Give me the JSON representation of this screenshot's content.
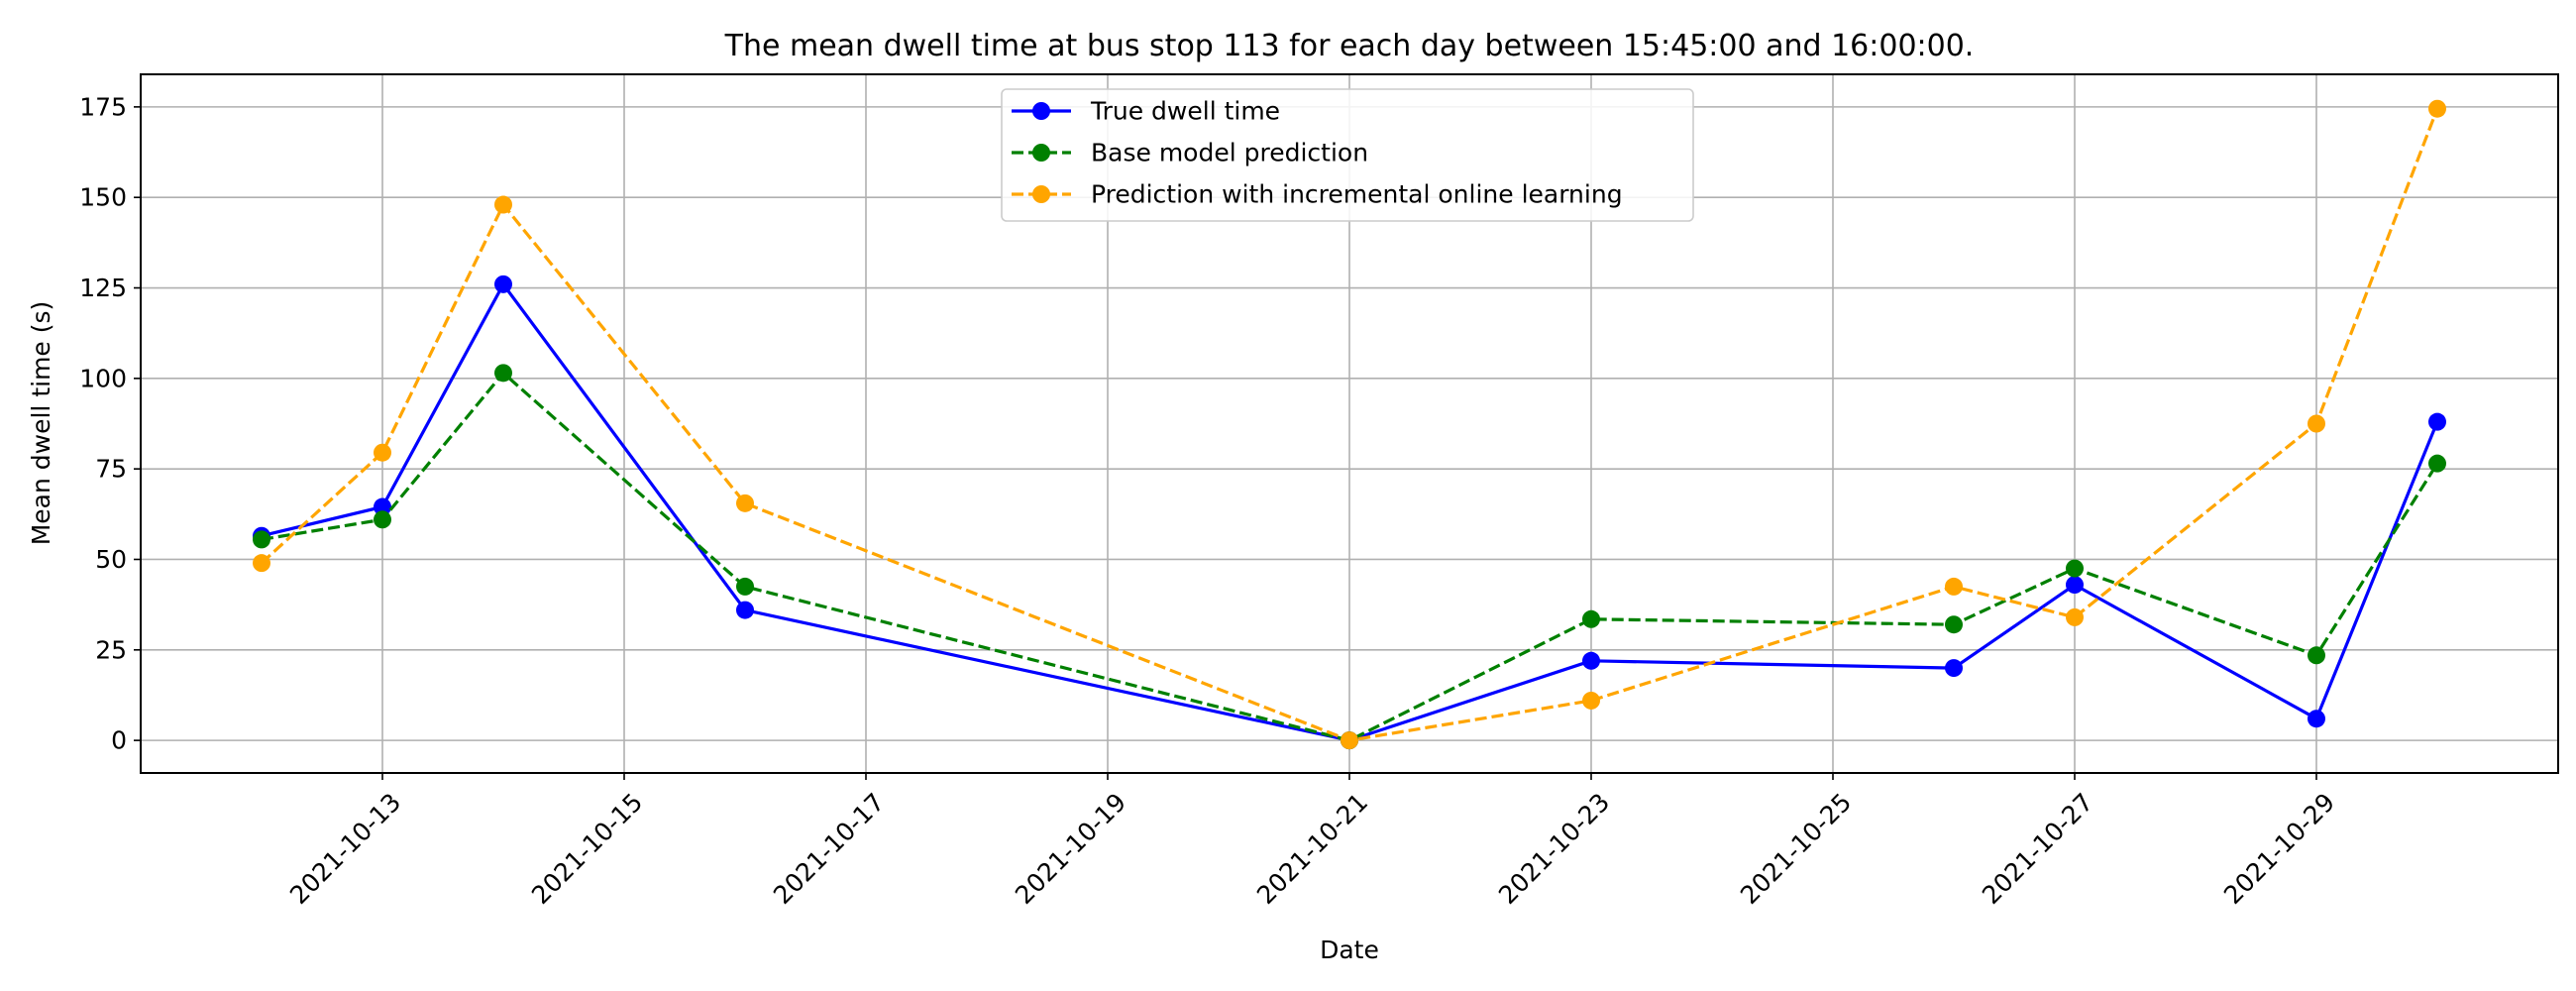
{
  "chart_data": {
    "type": "line",
    "title": "The mean dwell time at bus stop 113 for each day between 15:45:00 and 16:00:00.",
    "xlabel": "Date",
    "ylabel": "Mean dwell time (s)",
    "x_ticks": [
      "2021-10-13",
      "2021-10-15",
      "2021-10-17",
      "2021-10-19",
      "2021-10-21",
      "2021-10-23",
      "2021-10-25",
      "2021-10-27",
      "2021-10-29"
    ],
    "y_ticks": [
      0,
      25,
      50,
      75,
      100,
      125,
      150,
      175
    ],
    "xlim": [
      "2021-10-11",
      "2021-10-31"
    ],
    "ylim": [
      -9,
      184
    ],
    "grid": true,
    "legend_position": "top-center",
    "x": [
      "2021-10-12",
      "2021-10-13",
      "2021-10-14",
      "2021-10-16",
      "2021-10-21",
      "2021-10-23",
      "2021-10-26",
      "2021-10-27",
      "2021-10-29",
      "2021-10-30"
    ],
    "series": [
      {
        "name": "True dwell time",
        "color": "#0000ff",
        "style": "solid",
        "values": [
          56.5,
          64.5,
          126,
          36,
          0,
          22,
          20,
          43,
          6,
          88
        ]
      },
      {
        "name": "Base model prediction",
        "color": "#008000",
        "style": "dashed",
        "values": [
          55.5,
          61,
          101.5,
          42.5,
          0,
          33.5,
          32,
          47.5,
          23.5,
          76.5
        ]
      },
      {
        "name": "Prediction with incremental online learning",
        "color": "#ffa500",
        "style": "dashed",
        "values": [
          49,
          79.5,
          148,
          65.5,
          0,
          11,
          42.5,
          34,
          87.5,
          174.5
        ]
      }
    ]
  }
}
